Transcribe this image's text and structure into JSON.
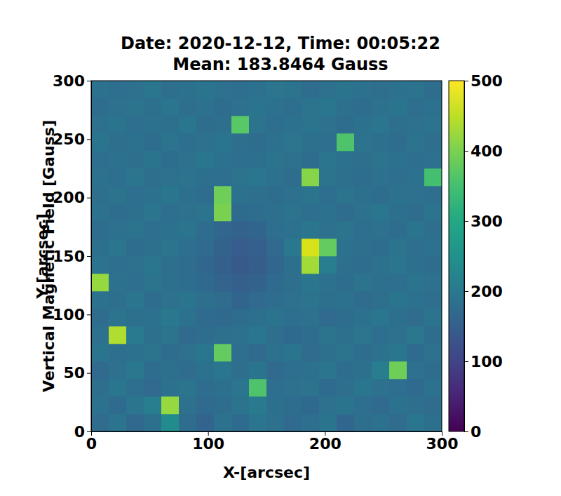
{
  "chart_data": {
    "type": "heatmap",
    "title": "Date: 2020-12-12, Time: 00:05:22",
    "subtitle": "Mean: 183.8464 Gauss",
    "x_label": "X-[arcsec]",
    "y_label": "Y-[arcsec]",
    "xlim": [
      0,
      300
    ],
    "ylim": [
      0,
      300
    ],
    "xticks": [
      0,
      100,
      200,
      300
    ],
    "yticks": [
      0,
      50,
      100,
      150,
      200,
      250,
      300
    ],
    "x_bins": [
      0,
      15,
      30,
      45,
      60,
      75,
      90,
      105,
      120,
      135,
      150,
      165,
      180,
      195,
      210,
      225,
      240,
      255,
      270,
      285,
      300
    ],
    "y_bins": [
      0,
      15,
      30,
      45,
      60,
      75,
      90,
      105,
      120,
      135,
      150,
      165,
      180,
      195,
      210,
      225,
      240,
      255,
      270,
      285,
      300
    ],
    "cells": [
      [
        175,
        190,
        168,
        182,
        240,
        176,
        160,
        188,
        172,
        195,
        185,
        170,
        178,
        192,
        165,
        180,
        188,
        174,
        196,
        182
      ],
      [
        188,
        172,
        195,
        210,
        420,
        185,
        170,
        176,
        190,
        205,
        182,
        176,
        168,
        185,
        192,
        178,
        170,
        186,
        180,
        175
      ],
      [
        180,
        196,
        178,
        170,
        188,
        192,
        176,
        182,
        194,
        360,
        178,
        184,
        190,
        172,
        180,
        196,
        184,
        178,
        170,
        188
      ],
      [
        170,
        185,
        200,
        176,
        182,
        174,
        188,
        196,
        180,
        192,
        170,
        178,
        186,
        194,
        176,
        182,
        210,
        390,
        184,
        176
      ],
      [
        192,
        178,
        186,
        190,
        175,
        184,
        196,
        380,
        178,
        170,
        186,
        192,
        174,
        182,
        190,
        176,
        188,
        196,
        172,
        185
      ],
      [
        184,
        440,
        205,
        182,
        190,
        170,
        176,
        182,
        188,
        196,
        180,
        168,
        176,
        190,
        182,
        194,
        178,
        184,
        198,
        176
      ],
      [
        176,
        190,
        182,
        188,
        200,
        186,
        172,
        168,
        176,
        182,
        190,
        178,
        184,
        170,
        176,
        188,
        196,
        182,
        174,
        190
      ],
      [
        186,
        180,
        194,
        176,
        184,
        192,
        180,
        174,
        162,
        170,
        176,
        184,
        190,
        182,
        188,
        174,
        180,
        192,
        186,
        178
      ],
      [
        420,
        186,
        178,
        190,
        182,
        176,
        168,
        160,
        150,
        158,
        172,
        180,
        196,
        186,
        176,
        190,
        182,
        178,
        190,
        184
      ],
      [
        190,
        178,
        184,
        196,
        180,
        174,
        166,
        152,
        140,
        148,
        164,
        182,
        430,
        210,
        180,
        176,
        188,
        194,
        182,
        176
      ],
      [
        182,
        194,
        176,
        182,
        190,
        178,
        170,
        158,
        146,
        150,
        170,
        200,
        470,
        380,
        186,
        180,
        176,
        190,
        178,
        188
      ],
      [
        176,
        184,
        190,
        178,
        186,
        192,
        176,
        164,
        156,
        162,
        178,
        188,
        196,
        184,
        190,
        178,
        184,
        176,
        192,
        180
      ],
      [
        188,
        176,
        182,
        194,
        178,
        184,
        190,
        400,
        172,
        176,
        182,
        190,
        178,
        186,
        174,
        188,
        196,
        182,
        176,
        190
      ],
      [
        180,
        190,
        178,
        186,
        196,
        182,
        176,
        390,
        186,
        180,
        176,
        184,
        192,
        178,
        190,
        182,
        176,
        188,
        184,
        178
      ],
      [
        186,
        178,
        194,
        180,
        184,
        190,
        182,
        178,
        190,
        196,
        184,
        176,
        410,
        190,
        182,
        176,
        184,
        178,
        186,
        350
      ],
      [
        178,
        186,
        180,
        192,
        176,
        184,
        196,
        186,
        178,
        182,
        190,
        184,
        176,
        194,
        188,
        180,
        190,
        186,
        178,
        184
      ],
      [
        192,
        180,
        186,
        176,
        190,
        178,
        184,
        192,
        180,
        176,
        186,
        194,
        182,
        178,
        360,
        190,
        182,
        176,
        190,
        180
      ],
      [
        184,
        192,
        178,
        188,
        182,
        196,
        176,
        180,
        370,
        190,
        178,
        186,
        192,
        184,
        176,
        188,
        194,
        180,
        184,
        190
      ],
      [
        176,
        184,
        190,
        182,
        194,
        180,
        188,
        176,
        184,
        192,
        186,
        178,
        190,
        196,
        182,
        176,
        184,
        192,
        178,
        186
      ],
      [
        188,
        178,
        184,
        196,
        180,
        186,
        192,
        184,
        178,
        186,
        194,
        190,
        176,
        184,
        192,
        188,
        180,
        186,
        190,
        176
      ]
    ],
    "colorbar": {
      "label": "Vertical Magnetic Field [Gauss]",
      "range": [
        0,
        500
      ],
      "ticks": [
        0,
        100,
        200,
        300,
        400,
        500
      ]
    }
  }
}
